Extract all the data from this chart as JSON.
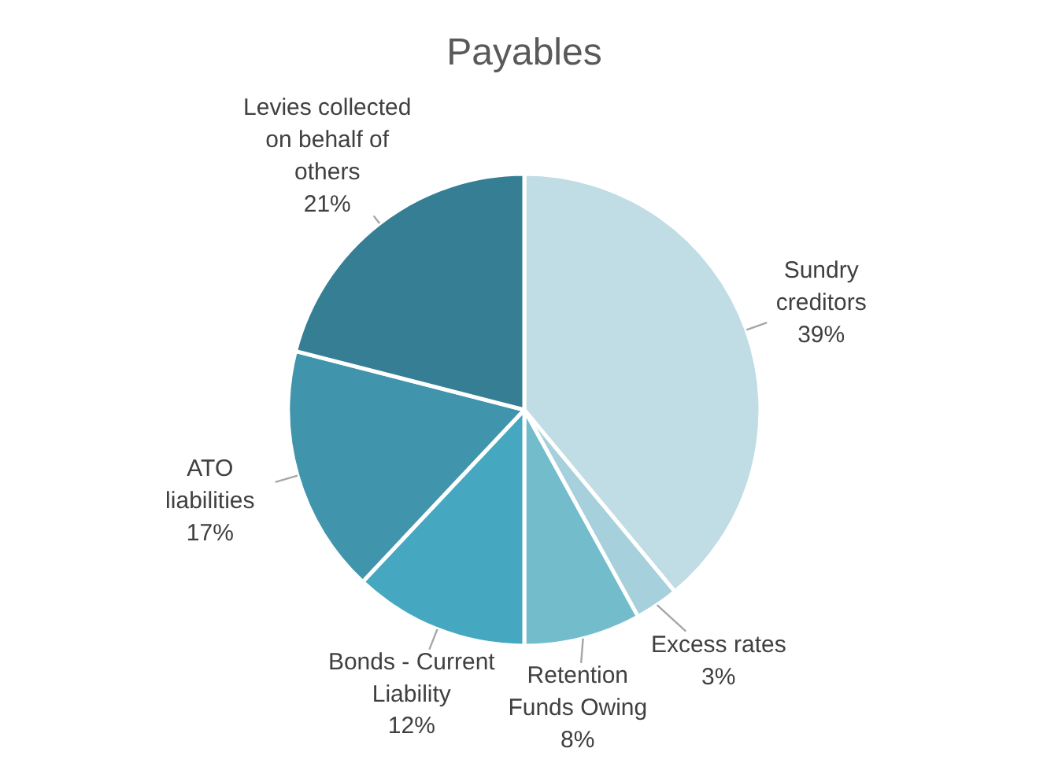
{
  "chart_data": {
    "type": "pie",
    "title": "Payables",
    "categories": [
      "Sundry creditors",
      "Excess rates",
      "Retention Funds Owing",
      "Bonds - Current Liability",
      "ATO liabilities",
      "Levies collected on behalf of others"
    ],
    "values": [
      39,
      3,
      8,
      12,
      17,
      21
    ],
    "colors": [
      "#c0dce4",
      "#a6d0dc",
      "#72bccc",
      "#46a8c0",
      "#4094ac",
      "#367e94"
    ],
    "value_labels": [
      "39%",
      "3%",
      "8%",
      "12%",
      "17%",
      "21%"
    ]
  }
}
